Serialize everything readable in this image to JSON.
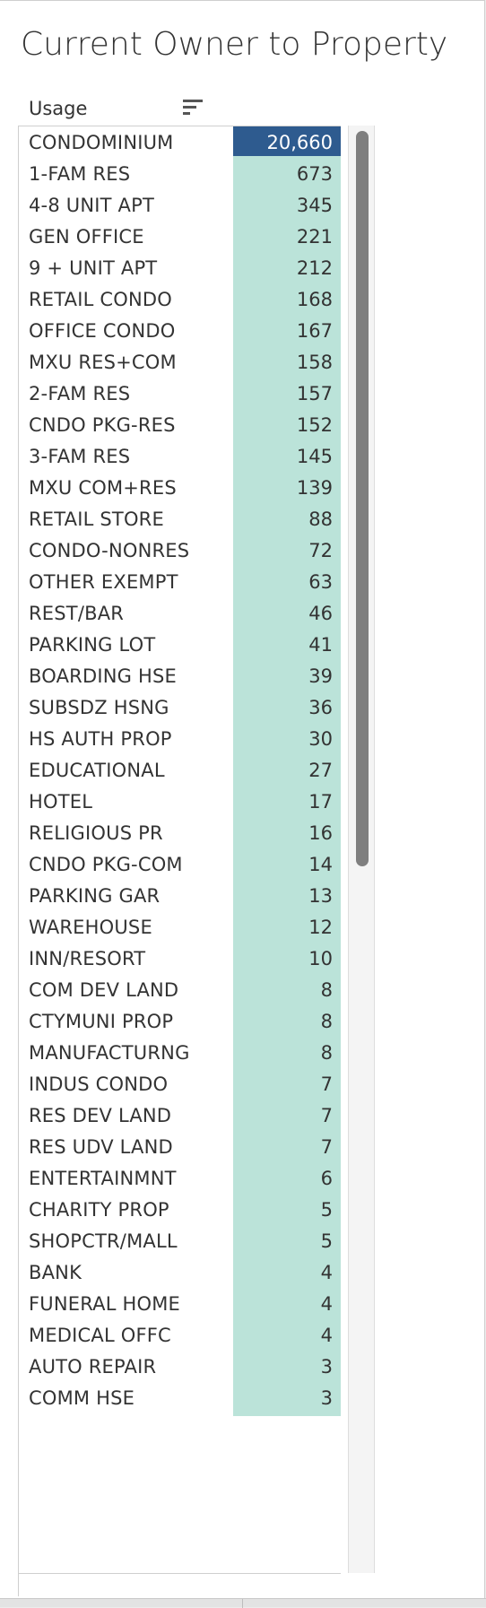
{
  "title": "Current Owner to Property",
  "table": {
    "column_header": "Usage",
    "selected_index": 0,
    "colors": {
      "cell": "#bbe3d9",
      "selected_cell": "#2e5b8f",
      "text": "#333333"
    },
    "rows": [
      {
        "label": "CONDOMINIUM",
        "value": "20,660"
      },
      {
        "label": "1-FAM RES",
        "value": "673"
      },
      {
        "label": "4-8 UNIT APT",
        "value": "345"
      },
      {
        "label": "GEN OFFICE",
        "value": "221"
      },
      {
        "label": "9 + UNIT APT",
        "value": "212"
      },
      {
        "label": "RETAIL CONDO",
        "value": "168"
      },
      {
        "label": "OFFICE CONDO",
        "value": "167"
      },
      {
        "label": "MXU RES+COM",
        "value": "158"
      },
      {
        "label": "2-FAM RES",
        "value": "157"
      },
      {
        "label": "CNDO PKG-RES",
        "value": "152"
      },
      {
        "label": "3-FAM RES",
        "value": "145"
      },
      {
        "label": "MXU COM+RES",
        "value": "139"
      },
      {
        "label": "RETAIL STORE",
        "value": "88"
      },
      {
        "label": "CONDO-NONRES",
        "value": "72"
      },
      {
        "label": "OTHER EXEMPT",
        "value": "63"
      },
      {
        "label": "REST/BAR",
        "value": "46"
      },
      {
        "label": "PARKING LOT",
        "value": "41"
      },
      {
        "label": "BOARDING HSE",
        "value": "39"
      },
      {
        "label": "SUBSDZ HSNG",
        "value": "36"
      },
      {
        "label": "HS AUTH PROP",
        "value": "30"
      },
      {
        "label": "EDUCATIONAL",
        "value": "27"
      },
      {
        "label": "HOTEL",
        "value": "17"
      },
      {
        "label": "RELIGIOUS PR",
        "value": "16"
      },
      {
        "label": "CNDO PKG-COM",
        "value": "14"
      },
      {
        "label": "PARKING GAR",
        "value": "13"
      },
      {
        "label": "WAREHOUSE",
        "value": "12"
      },
      {
        "label": "INN/RESORT",
        "value": "10"
      },
      {
        "label": "COM DEV LAND",
        "value": "8"
      },
      {
        "label": "CTYMUNI PROP",
        "value": "8"
      },
      {
        "label": "MANUFACTURNG",
        "value": "8"
      },
      {
        "label": "INDUS CONDO",
        "value": "7"
      },
      {
        "label": "RES DEV LAND",
        "value": "7"
      },
      {
        "label": "RES UDV LAND",
        "value": "7"
      },
      {
        "label": "ENTERTAINMNT",
        "value": "6"
      },
      {
        "label": "CHARITY PROP",
        "value": "5"
      },
      {
        "label": "SHOPCTR/MALL",
        "value": "5"
      },
      {
        "label": "BANK",
        "value": "4"
      },
      {
        "label": "FUNERAL HOME",
        "value": "4"
      },
      {
        "label": "MEDICAL OFFC",
        "value": "4"
      },
      {
        "label": "AUTO REPAIR",
        "value": "3"
      },
      {
        "label": "COMM HSE",
        "value": "3"
      }
    ]
  },
  "icons": {
    "sort": "sort-descending-icon"
  }
}
